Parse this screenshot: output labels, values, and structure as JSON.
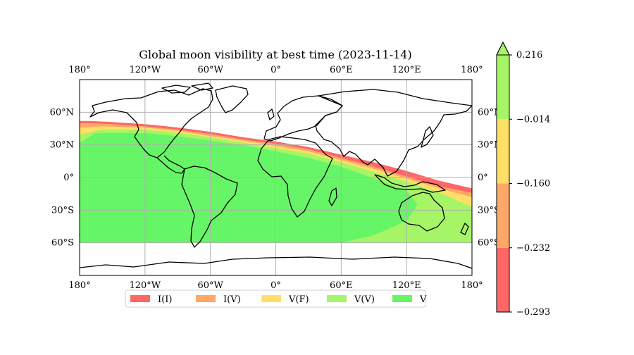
{
  "map": {
    "title": "Global moon visibility at best time (2023-11-14)",
    "lon_ticks": [
      {
        "value": -180,
        "label": "180°"
      },
      {
        "value": -120,
        "label": "120°W"
      },
      {
        "value": -60,
        "label": "60°W"
      },
      {
        "value": 0,
        "label": "0°"
      },
      {
        "value": 60,
        "label": "60°E"
      },
      {
        "value": 120,
        "label": "120°E"
      },
      {
        "value": 180,
        "label": "180°"
      }
    ],
    "lat_ticks": [
      {
        "value": 60,
        "label": "60°N"
      },
      {
        "value": 30,
        "label": "30°N"
      },
      {
        "value": 0,
        "label": "0°"
      },
      {
        "value": -30,
        "label": "30°S"
      },
      {
        "value": -60,
        "label": "60°S"
      }
    ],
    "extent": {
      "lon": [
        -180,
        180
      ],
      "lat": [
        -90,
        90
      ]
    },
    "data_lat_limit": -60,
    "grid": true,
    "legend": {
      "placement": "bottom-center",
      "entries": [
        {
          "label": "I(I)",
          "color": "#ff6666"
        },
        {
          "label": "I(V)",
          "color": "#ffa766"
        },
        {
          "label": "V(F)",
          "color": "#ffdf66"
        },
        {
          "label": "V(V)",
          "color": "#a6f566"
        },
        {
          "label": "V",
          "color": "#66f566"
        }
      ]
    }
  },
  "colorbar": {
    "levels": [
      -0.293,
      -0.232,
      -0.16,
      -0.014,
      0.216
    ],
    "tick_labels": [
      "−0.293",
      "−0.232",
      "−0.160",
      "−0.014",
      "0.216"
    ],
    "colors": [
      "#ff6666",
      "#ffa766",
      "#ffdf66",
      "#a6f566"
    ],
    "extend_color": "#a6f566",
    "extend": "max"
  },
  "zones": [
    {
      "label": "I(I)",
      "color": "#ff6666",
      "boundary": [
        [
          -172,
          52
        ],
        [
          -150,
          51
        ],
        [
          -120,
          49
        ],
        [
          -90,
          46
        ],
        [
          -60,
          42
        ],
        [
          -30,
          37
        ],
        [
          0,
          33
        ],
        [
          30,
          28
        ],
        [
          60,
          21
        ],
        [
          90,
          14
        ],
        [
          120,
          6
        ],
        [
          150,
          -3
        ],
        [
          180,
          -10
        ]
      ]
    },
    {
      "label": "I(V)",
      "color": "#ffa766",
      "boundary": [
        [
          -173,
          50
        ],
        [
          -150,
          49
        ],
        [
          -120,
          47
        ],
        [
          -90,
          44
        ],
        [
          -60,
          40
        ],
        [
          -30,
          35
        ],
        [
          0,
          31
        ],
        [
          30,
          26
        ],
        [
          60,
          18
        ],
        [
          90,
          10
        ],
        [
          120,
          1
        ],
        [
          150,
          -8
        ],
        [
          180,
          -14
        ]
      ]
    },
    {
      "label": "V(F)",
      "color": "#ffdf66",
      "boundary": [
        [
          -175,
          46
        ],
        [
          -160,
          47
        ],
        [
          -120,
          46
        ],
        [
          -90,
          43
        ],
        [
          -60,
          38
        ],
        [
          -30,
          34
        ],
        [
          0,
          29
        ],
        [
          30,
          24
        ],
        [
          60,
          16
        ],
        [
          90,
          8
        ],
        [
          120,
          -1
        ],
        [
          150,
          -10
        ],
        [
          180,
          -18
        ]
      ]
    },
    {
      "label": "V(V)",
      "color": "#a6f566",
      "boundary": [
        [
          -177,
          40
        ],
        [
          -160,
          44
        ],
        [
          -120,
          44
        ],
        [
          -90,
          41
        ],
        [
          -60,
          37
        ],
        [
          -30,
          32
        ],
        [
          0,
          27
        ],
        [
          30,
          22
        ],
        [
          60,
          14
        ],
        [
          90,
          5
        ],
        [
          120,
          -4
        ],
        [
          150,
          -14
        ],
        [
          180,
          -27
        ]
      ]
    },
    {
      "label": "V",
      "color": "#66f566",
      "boundary": [
        [
          -178,
          33
        ],
        [
          -165,
          41
        ],
        [
          -120,
          41
        ],
        [
          -90,
          38
        ],
        [
          -60,
          34
        ],
        [
          -30,
          30
        ],
        [
          0,
          24
        ],
        [
          30,
          18
        ],
        [
          60,
          10
        ],
        [
          90,
          -1
        ],
        [
          120,
          -12
        ],
        [
          130,
          -25
        ],
        [
          120,
          -40
        ],
        [
          90,
          -53
        ],
        [
          60,
          -60
        ]
      ]
    }
  ]
}
